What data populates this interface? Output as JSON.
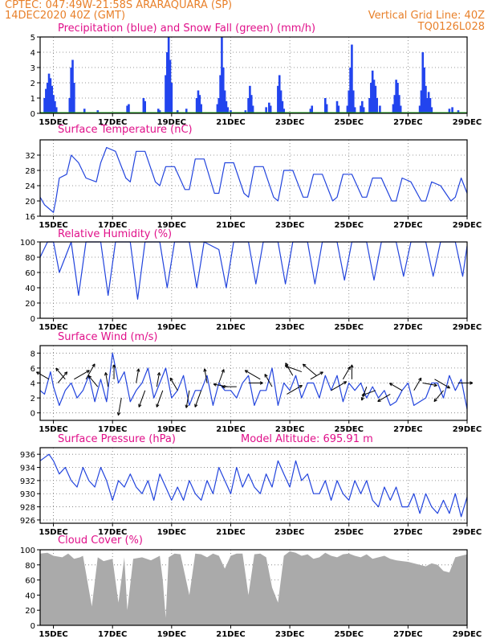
{
  "header": {
    "line1_left": "CPTEC:   047:49W-21:58S   ARARAQUARA (SP)",
    "line2_left": "14DEC2020  40Z  (GMT)",
    "line1_right": "Vertical Grid Line: 40Z",
    "line2_right": "TQ0126L028"
  },
  "x_ticks": [
    "15DEC",
    "17DEC",
    "19DEC",
    "21DEC",
    "23DEC",
    "25DEC",
    "27DEC",
    "29DEC"
  ],
  "colors": {
    "precip": "#2244ee",
    "snow": "#22aa22",
    "line": "#2244dd",
    "cloud": "#aaaaaa",
    "title": "#e0108a",
    "header": "#e8802a"
  },
  "chart_data": [
    {
      "type": "bar",
      "title": "Precipitation (blue) and Snow Fall (green) (mm/h)",
      "ylim": [
        0,
        5
      ],
      "yticks": [
        "0",
        "1",
        "2",
        "3",
        "4",
        "5"
      ],
      "x_range": [
        14.55,
        29.0
      ],
      "precip": [
        [
          14.7,
          1.0
        ],
        [
          14.75,
          1.6
        ],
        [
          14.8,
          2.0
        ],
        [
          14.85,
          2.6
        ],
        [
          14.9,
          2.3
        ],
        [
          14.95,
          1.8
        ],
        [
          15.0,
          1.2
        ],
        [
          15.05,
          0.8
        ],
        [
          15.1,
          0.4
        ],
        [
          15.55,
          1.0
        ],
        [
          15.6,
          3.0
        ],
        [
          15.65,
          3.5
        ],
        [
          15.7,
          2.0
        ],
        [
          16.05,
          0.3
        ],
        [
          16.5,
          0.2
        ],
        [
          17.5,
          0.5
        ],
        [
          17.55,
          0.6
        ],
        [
          18.05,
          1.0
        ],
        [
          18.1,
          0.8
        ],
        [
          18.55,
          0.3
        ],
        [
          18.6,
          0.2
        ],
        [
          18.8,
          2.5
        ],
        [
          18.85,
          4.0
        ],
        [
          18.9,
          5.0
        ],
        [
          18.95,
          3.5
        ],
        [
          19.0,
          2.0
        ],
        [
          19.2,
          0.2
        ],
        [
          19.5,
          0.3
        ],
        [
          19.85,
          1.0
        ],
        [
          19.9,
          1.5
        ],
        [
          19.95,
          1.2
        ],
        [
          20.0,
          0.6
        ],
        [
          20.55,
          0.6
        ],
        [
          20.6,
          1.0
        ],
        [
          20.65,
          2.5
        ],
        [
          20.7,
          5.0
        ],
        [
          20.75,
          3.0
        ],
        [
          20.8,
          1.5
        ],
        [
          20.85,
          0.8
        ],
        [
          20.9,
          0.4
        ],
        [
          21.0,
          0.2
        ],
        [
          21.5,
          0.2
        ],
        [
          21.6,
          1.0
        ],
        [
          21.65,
          1.8
        ],
        [
          21.7,
          1.2
        ],
        [
          21.75,
          0.5
        ],
        [
          22.2,
          0.4
        ],
        [
          22.3,
          0.7
        ],
        [
          22.35,
          0.5
        ],
        [
          22.6,
          1.8
        ],
        [
          22.65,
          2.5
        ],
        [
          22.7,
          1.5
        ],
        [
          22.75,
          0.8
        ],
        [
          22.8,
          0.3
        ],
        [
          23.7,
          0.3
        ],
        [
          23.75,
          0.5
        ],
        [
          24.2,
          1.0
        ],
        [
          24.25,
          0.6
        ],
        [
          24.6,
          0.8
        ],
        [
          24.65,
          0.5
        ],
        [
          24.95,
          0.5
        ],
        [
          25.0,
          1.5
        ],
        [
          25.05,
          3.0
        ],
        [
          25.1,
          4.5
        ],
        [
          25.15,
          1.5
        ],
        [
          25.2,
          0.4
        ],
        [
          25.4,
          0.5
        ],
        [
          25.45,
          0.8
        ],
        [
          25.5,
          0.4
        ],
        [
          25.7,
          1.0
        ],
        [
          25.75,
          2.0
        ],
        [
          25.8,
          2.8
        ],
        [
          25.85,
          2.2
        ],
        [
          25.9,
          1.8
        ],
        [
          25.95,
          1.0
        ],
        [
          26.05,
          0.5
        ],
        [
          26.5,
          0.6
        ],
        [
          26.55,
          1.2
        ],
        [
          26.6,
          2.2
        ],
        [
          26.65,
          2.0
        ],
        [
          26.7,
          1.2
        ],
        [
          26.75,
          0.5
        ],
        [
          27.4,
          0.5
        ],
        [
          27.45,
          1.5
        ],
        [
          27.5,
          4.0
        ],
        [
          27.55,
          3.0
        ],
        [
          27.6,
          1.8
        ],
        [
          27.65,
          1.0
        ],
        [
          27.7,
          1.4
        ],
        [
          27.75,
          1.0
        ],
        [
          27.8,
          0.4
        ],
        [
          28.4,
          0.3
        ],
        [
          28.5,
          0.4
        ],
        [
          28.7,
          0.2
        ]
      ]
    },
    {
      "type": "line",
      "title": "Surface Temperature (nC)",
      "ylim": [
        16,
        36
      ],
      "yticks": [
        "16",
        "20",
        "24",
        "28",
        "32"
      ],
      "ytick_values": [
        16,
        20,
        24,
        28,
        32
      ],
      "x": [
        14.55,
        14.7,
        14.85,
        15.0,
        15.1,
        15.2,
        15.45,
        15.6,
        15.85,
        16.1,
        16.45,
        16.6,
        16.8,
        17.1,
        17.45,
        17.6,
        17.8,
        18.1,
        18.45,
        18.6,
        18.8,
        19.1,
        19.45,
        19.6,
        19.8,
        20.1,
        20.45,
        20.6,
        20.8,
        21.1,
        21.45,
        21.6,
        21.8,
        22.1,
        22.45,
        22.6,
        22.8,
        23.1,
        23.45,
        23.6,
        23.8,
        24.1,
        24.45,
        24.6,
        24.8,
        25.1,
        25.45,
        25.6,
        25.8,
        26.1,
        26.45,
        26.6,
        26.8,
        27.1,
        27.45,
        27.6,
        27.8,
        28.1,
        28.45,
        28.6,
        28.8,
        29.0
      ],
      "values": [
        21,
        19,
        18,
        17,
        21,
        26,
        27,
        32,
        30,
        26,
        25,
        30,
        34,
        33,
        26,
        25,
        33,
        33,
        25,
        24,
        29,
        29,
        23,
        23,
        31,
        31,
        22,
        22,
        30,
        30,
        22,
        21,
        29,
        29,
        21,
        20,
        28,
        28,
        21,
        21,
        27,
        27,
        20,
        21,
        27,
        27,
        21,
        21,
        26,
        26,
        20,
        20,
        26,
        25,
        20,
        20,
        25,
        24,
        20,
        21,
        26,
        22
      ]
    },
    {
      "type": "line",
      "title": "Relative Humidity (%)",
      "ylim": [
        0,
        100
      ],
      "yticks": [
        "0",
        "20",
        "40",
        "60",
        "80",
        "100"
      ],
      "ytick_values": [
        0,
        20,
        40,
        60,
        80,
        100
      ],
      "x": [
        14.55,
        14.8,
        15.0,
        15.2,
        15.6,
        15.85,
        16.1,
        16.6,
        16.85,
        17.1,
        17.6,
        17.85,
        18.1,
        18.6,
        18.85,
        19.1,
        19.6,
        19.85,
        20.1,
        20.6,
        20.85,
        21.1,
        21.6,
        21.85,
        22.1,
        22.6,
        22.85,
        23.1,
        23.6,
        23.85,
        24.1,
        24.6,
        24.85,
        25.1,
        25.6,
        25.85,
        26.1,
        26.6,
        26.85,
        27.1,
        27.6,
        27.85,
        28.1,
        28.6,
        28.85,
        29.0
      ],
      "values": [
        80,
        100,
        100,
        60,
        100,
        30,
        100,
        100,
        30,
        100,
        100,
        25,
        100,
        100,
        40,
        100,
        100,
        40,
        100,
        90,
        40,
        100,
        100,
        45,
        100,
        100,
        45,
        100,
        100,
        45,
        100,
        100,
        50,
        100,
        100,
        50,
        100,
        100,
        55,
        100,
        100,
        55,
        100,
        100,
        55,
        95
      ]
    },
    {
      "type": "line",
      "title": "Surface Wind (m/s)",
      "ylim": [
        -1,
        9
      ],
      "yticks": [
        "0",
        "2",
        "4",
        "6",
        "8"
      ],
      "ytick_values": [
        0,
        2,
        4,
        6,
        8
      ],
      "x": [
        14.55,
        14.7,
        14.9,
        15.0,
        15.2,
        15.4,
        15.6,
        15.8,
        16.0,
        16.2,
        16.4,
        16.6,
        16.8,
        17.0,
        17.2,
        17.4,
        17.6,
        17.8,
        18.0,
        18.2,
        18.4,
        18.6,
        18.8,
        19.0,
        19.2,
        19.4,
        19.6,
        19.8,
        20.0,
        20.2,
        20.4,
        20.6,
        20.8,
        21.0,
        21.2,
        21.4,
        21.6,
        21.8,
        22.0,
        22.2,
        22.4,
        22.6,
        22.8,
        23.0,
        23.2,
        23.4,
        23.6,
        23.8,
        24.0,
        24.2,
        24.4,
        24.6,
        24.8,
        25.0,
        25.2,
        25.4,
        25.6,
        25.8,
        26.0,
        26.2,
        26.4,
        26.6,
        26.8,
        27.0,
        27.2,
        27.4,
        27.6,
        27.8,
        28.0,
        28.2,
        28.4,
        28.6,
        28.8,
        29.0
      ],
      "values": [
        3,
        2.5,
        5.5,
        3.5,
        1,
        3,
        4,
        2,
        3,
        5,
        1.5,
        4.5,
        1.5,
        8,
        4,
        5.5,
        1.5,
        3,
        4,
        6,
        2,
        4,
        6,
        2,
        3,
        5,
        1,
        3,
        3,
        5,
        1,
        4,
        3,
        3,
        2,
        4,
        5,
        1,
        3,
        3,
        6,
        1,
        4,
        3,
        5,
        2,
        4,
        4,
        2,
        5,
        3,
        5,
        1.5,
        4,
        3,
        4,
        2,
        3.5,
        2,
        3,
        1,
        1.5,
        3,
        4,
        1,
        1.5,
        2,
        4,
        4,
        2,
        5,
        3,
        4.5,
        0.5
      ],
      "arrows": [
        [
          14.85,
          4.5,
          300,
          2
        ],
        [
          15.15,
          4.0,
          40,
          2
        ],
        [
          15.4,
          4.5,
          320,
          2
        ],
        [
          15.7,
          4.5,
          60,
          3
        ],
        [
          16.1,
          4.5,
          30,
          3
        ],
        [
          16.5,
          3.5,
          320,
          2
        ],
        [
          16.85,
          3.5,
          350,
          2
        ],
        [
          17.05,
          4.5,
          0,
          2
        ],
        [
          17.3,
          2.0,
          190,
          3
        ],
        [
          17.8,
          4.0,
          10,
          2
        ],
        [
          18.1,
          3.0,
          200,
          3
        ],
        [
          18.5,
          3.5,
          10,
          2
        ],
        [
          18.7,
          3.0,
          200,
          3
        ],
        [
          19.2,
          3.0,
          330,
          2
        ],
        [
          19.6,
          3.0,
          190,
          3
        ],
        [
          20.0,
          3.0,
          200,
          3
        ],
        [
          20.2,
          4.0,
          350,
          2
        ],
        [
          20.6,
          4.0,
          20,
          2
        ],
        [
          20.9,
          3.5,
          280,
          2
        ],
        [
          21.2,
          3.5,
          270,
          2
        ],
        [
          21.6,
          4.0,
          90,
          2
        ],
        [
          22.0,
          4.5,
          300,
          3
        ],
        [
          22.4,
          3.5,
          330,
          2
        ],
        [
          22.9,
          2.5,
          60,
          3
        ],
        [
          23.1,
          5.0,
          330,
          2
        ],
        [
          23.4,
          5.5,
          290,
          3
        ],
        [
          23.7,
          4.5,
          60,
          2
        ],
        [
          23.9,
          5.0,
          310,
          3
        ],
        [
          24.4,
          3.0,
          60,
          3
        ],
        [
          24.8,
          4.5,
          30,
          2
        ],
        [
          25.1,
          4.5,
          0,
          2
        ],
        [
          25.6,
          3.5,
          200,
          2
        ],
        [
          25.9,
          3.0,
          250,
          2
        ],
        [
          26.4,
          2.5,
          240,
          2
        ],
        [
          26.8,
          3.0,
          300,
          2
        ],
        [
          27.2,
          3.0,
          30,
          2
        ],
        [
          27.5,
          4.0,
          100,
          2
        ],
        [
          27.9,
          4.5,
          120,
          3
        ],
        [
          28.2,
          3.0,
          220,
          2
        ],
        [
          28.7,
          4.0,
          90,
          2
        ]
      ]
    },
    {
      "type": "line",
      "title": "Surface Pressure (hPa)",
      "subtitle": "Model Altitude: 695.91  m",
      "ylim": [
        925.5,
        937
      ],
      "yticks": [
        "926",
        "928",
        "930",
        "932",
        "934",
        "936"
      ],
      "ytick_values": [
        926,
        928,
        930,
        932,
        934,
        936
      ],
      "x": [
        14.55,
        14.7,
        14.85,
        15.0,
        15.2,
        15.4,
        15.6,
        15.8,
        16.0,
        16.2,
        16.4,
        16.6,
        16.8,
        17.0,
        17.2,
        17.4,
        17.6,
        17.8,
        18.0,
        18.2,
        18.4,
        18.6,
        18.8,
        19.0,
        19.2,
        19.4,
        19.6,
        19.8,
        20.0,
        20.2,
        20.4,
        20.6,
        20.8,
        21.0,
        21.2,
        21.4,
        21.6,
        21.8,
        22.0,
        22.2,
        22.4,
        22.6,
        22.8,
        23.0,
        23.2,
        23.4,
        23.6,
        23.8,
        24.0,
        24.2,
        24.4,
        24.6,
        24.8,
        25.0,
        25.2,
        25.4,
        25.6,
        25.8,
        26.0,
        26.2,
        26.4,
        26.6,
        26.8,
        27.0,
        27.2,
        27.4,
        27.6,
        27.8,
        28.0,
        28.2,
        28.4,
        28.6,
        28.8,
        29.0
      ],
      "values": [
        935,
        935.5,
        936,
        935,
        933,
        934,
        932,
        931,
        934,
        932,
        931,
        934,
        932,
        929,
        932,
        931,
        933,
        931,
        930,
        932,
        929,
        933,
        931,
        929,
        931,
        929,
        932,
        930,
        929,
        932,
        930,
        934,
        932,
        930,
        934,
        931,
        933,
        931,
        930,
        933,
        931,
        935,
        933,
        931,
        935,
        932,
        933,
        930,
        930,
        932,
        929,
        932,
        930,
        929,
        932,
        930,
        932,
        929,
        928,
        931,
        929,
        931,
        928,
        928,
        930,
        927,
        930,
        928,
        927,
        929,
        927,
        930,
        926.5,
        929.5
      ]
    },
    {
      "type": "area",
      "title": "Cloud Cover (%)",
      "ylim": [
        0,
        100
      ],
      "yticks": [
        "0",
        "20",
        "40",
        "60",
        "80",
        "100"
      ],
      "ytick_values": [
        0,
        20,
        40,
        60,
        80,
        100
      ],
      "x": [
        14.55,
        14.8,
        15.0,
        15.3,
        15.5,
        15.7,
        15.9,
        16.0,
        16.3,
        16.5,
        16.7,
        17.0,
        17.2,
        17.4,
        17.5,
        17.7,
        18.0,
        18.3,
        18.6,
        18.7,
        18.8,
        18.9,
        19.1,
        19.3,
        19.6,
        19.8,
        20.0,
        20.2,
        20.4,
        20.6,
        20.8,
        21.0,
        21.2,
        21.4,
        21.6,
        21.8,
        22.0,
        22.2,
        22.4,
        22.6,
        22.8,
        23.0,
        23.2,
        23.4,
        23.6,
        23.8,
        24.0,
        24.2,
        24.4,
        24.6,
        24.8,
        25.0,
        25.2,
        25.4,
        25.6,
        25.8,
        26.0,
        26.2,
        26.4,
        26.6,
        26.8,
        27.0,
        27.2,
        27.4,
        27.6,
        27.8,
        28.0,
        28.2,
        28.4,
        28.6,
        28.8,
        29.0
      ],
      "values": [
        95,
        96,
        92,
        90,
        95,
        88,
        90,
        92,
        25,
        90,
        85,
        88,
        30,
        90,
        20,
        88,
        90,
        86,
        92,
        60,
        10,
        90,
        95,
        94,
        40,
        95,
        94,
        90,
        95,
        92,
        75,
        92,
        95,
        95,
        40,
        94,
        95,
        90,
        50,
        30,
        92,
        98,
        96,
        92,
        94,
        88,
        90,
        96,
        92,
        90,
        94,
        95,
        92,
        90,
        94,
        88,
        90,
        92,
        88,
        86,
        85,
        84,
        82,
        80,
        78,
        82,
        80,
        72,
        70,
        90,
        92,
        94
      ]
    }
  ]
}
